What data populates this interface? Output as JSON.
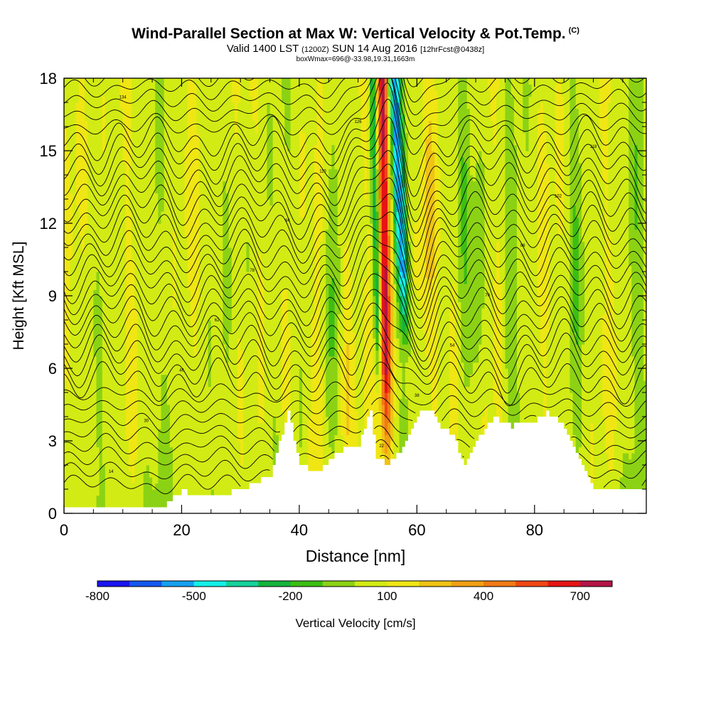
{
  "title": {
    "main": "Wind-Parallel Section at Max W: Vertical Velocity & Pot.Temp.",
    "copyright": "(C)",
    "valid_prefix": "Valid 1400 LST",
    "valid_utc": "(1200Z)",
    "valid_date": "SUN 14 Aug 2016",
    "forecast": "[12hrFcst@0438z]",
    "note": "boxWmax=696@-33.98,19.31,1663m"
  },
  "chart_data": {
    "type": "heatmap",
    "xlabel": "Distance [nm]",
    "ylabel": "Height [Kft MSL]",
    "xlim": [
      0,
      99
    ],
    "ylim": [
      0,
      18
    ],
    "x_ticks": [
      "0",
      "20",
      "40",
      "60",
      "80"
    ],
    "y_ticks": [
      "0",
      "3",
      "6",
      "9",
      "12",
      "15",
      "18"
    ],
    "grid": false,
    "colorbar": {
      "label": "Vertical Velocity [cm/s]",
      "placement": "bottom",
      "tick_labels": [
        "-800",
        "-500",
        "-200",
        "100",
        "400",
        "700"
      ],
      "tick_values": [
        -800,
        -500,
        -200,
        100,
        400,
        700
      ],
      "colors": [
        "#1a14f0",
        "#1458f0",
        "#14a0f0",
        "#14f0e8",
        "#14d29a",
        "#14b43c",
        "#3cbe14",
        "#8cd214",
        "#d2eb14",
        "#f0e614",
        "#f0c314",
        "#f0a014",
        "#f07a14",
        "#f04614",
        "#e61414",
        "#b41446"
      ]
    },
    "updraft_core": {
      "x_nm": 54.5,
      "peak_w_cm_s": 696
    },
    "terrain_kft": {
      "x": [
        0,
        17,
        20,
        25,
        30,
        35,
        38,
        40,
        43,
        47,
        50,
        52,
        53,
        55,
        58,
        60,
        62,
        64,
        66,
        68,
        70,
        73,
        76,
        80,
        82,
        85,
        88,
        90,
        95,
        99
      ],
      "y": [
        0.35,
        0.35,
        0.9,
        0.75,
        0.95,
        1.6,
        4.2,
        2.0,
        1.7,
        2.6,
        2.8,
        4.3,
        2.3,
        2.0,
        2.9,
        4.1,
        4.3,
        3.6,
        3.2,
        2.0,
        3.0,
        4.0,
        3.6,
        3.8,
        4.2,
        3.6,
        2.0,
        0.9,
        0.9,
        1.0
      ]
    },
    "theta_contour_labels": [
      "14",
      "18",
      "22",
      "26",
      "30",
      "34",
      "38",
      "42",
      "46",
      "50",
      "54",
      "58",
      "62",
      "66",
      "70",
      "74",
      "78",
      "82",
      "86",
      "90",
      "94",
      "98",
      "102",
      "106",
      "110",
      "114",
      "118",
      "122",
      "126",
      "130",
      "134"
    ]
  }
}
